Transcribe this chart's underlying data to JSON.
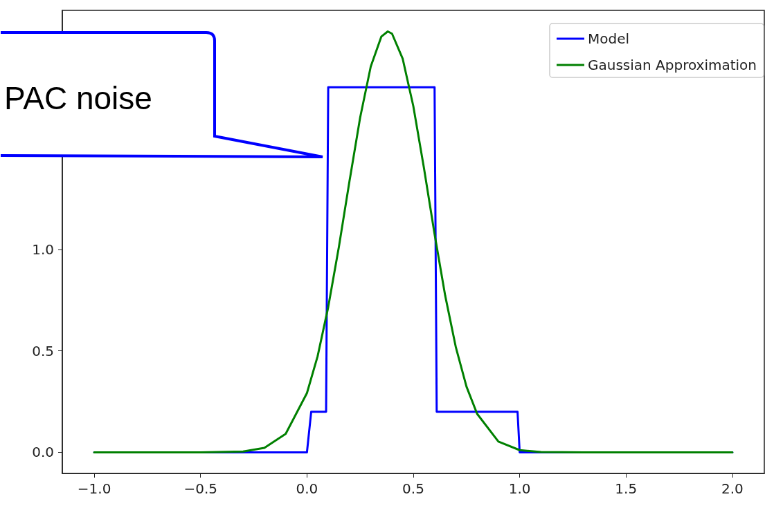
{
  "chart_data": {
    "type": "line",
    "xlim": [
      -1.15,
      2.15
    ],
    "xticks": [
      {
        "value": -1,
        "label": "−1.0"
      },
      {
        "value": -0.5,
        "label": "−0.5"
      },
      {
        "value": 0,
        "label": "0.0"
      },
      {
        "value": 0.5,
        "label": "0.5"
      },
      {
        "value": 1,
        "label": "1.0"
      },
      {
        "value": 1.5,
        "label": "1.5"
      },
      {
        "value": 2,
        "label": "2.0"
      }
    ],
    "ylim": [
      -0.104,
      2.179
    ],
    "yticks": [
      {
        "value": 0,
        "label": "0.0"
      },
      {
        "value": 0.5,
        "label": "0.5"
      },
      {
        "value": 1,
        "label": "1.0"
      }
    ],
    "grid": false,
    "legend": "top right",
    "marker": "none",
    "line_style": "solid",
    "annotations": [
      "PAC noise"
    ],
    "series": [
      {
        "name": "Model",
        "color": "#0000ff",
        "x": [
          -1,
          0,
          0.02,
          0.09,
          0.1,
          0.6,
          0.61,
          0.99,
          1.0,
          2
        ],
        "values": [
          0,
          0,
          0.2,
          0.2,
          1.8,
          1.8,
          0.2,
          0.2,
          0,
          0
        ]
      },
      {
        "name": "Gaussian Approximation",
        "color": "#008000",
        "x": [
          -1,
          -0.5,
          -0.3,
          -0.2,
          -0.1,
          0,
          0.05,
          0.1,
          0.15,
          0.2,
          0.25,
          0.3,
          0.35,
          0.38,
          0.4,
          0.45,
          0.5,
          0.55,
          0.6,
          0.65,
          0.7,
          0.75,
          0.8,
          0.9,
          1.0,
          1.1,
          1.3,
          2
        ],
        "values": [
          0,
          0,
          0.004,
          0.022,
          0.091,
          0.292,
          0.473,
          0.716,
          1.012,
          1.337,
          1.65,
          1.902,
          2.05,
          2.075,
          2.064,
          1.941,
          1.707,
          1.402,
          1.076,
          0.772,
          0.518,
          0.324,
          0.19,
          0.053,
          0.011,
          0.002,
          0,
          0
        ]
      }
    ]
  }
}
